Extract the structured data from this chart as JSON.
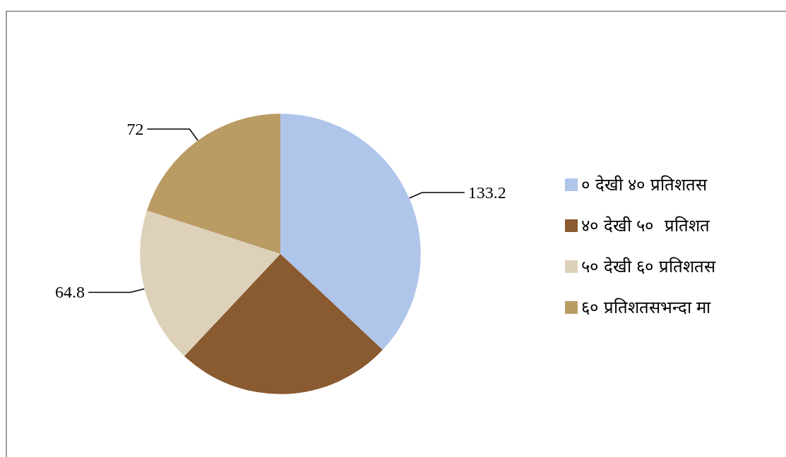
{
  "chart_data": {
    "type": "pie",
    "categories": [
      "० देखी ४० प्रतिशतस",
      "४० देखी ५०  प्रतिशत",
      "५० देखी ६० प्रतिशतस",
      "६० प्रतिशतसभन्दा मा"
    ],
    "values": [
      133.2,
      90,
      64.8,
      72
    ],
    "value_labels": [
      "133.2",
      null,
      "64.8",
      "72"
    ],
    "colors": [
      "#afc5ea",
      "#8a5a30",
      "#ddd1ba",
      "#b99b63"
    ],
    "legend": "right"
  }
}
